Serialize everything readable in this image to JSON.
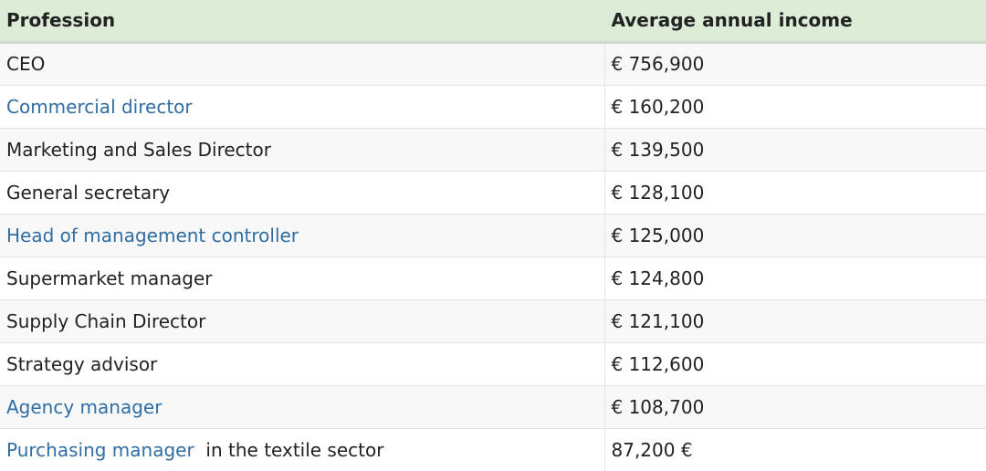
{
  "table": {
    "headers": {
      "profession": "Profession",
      "income": "Average annual income"
    },
    "colors": {
      "header_bg": "#dcecd6",
      "link": "#2f6da3",
      "text": "#222222"
    },
    "rows": [
      {
        "profession": "CEO",
        "suffix": "",
        "is_link": false,
        "income": "€ 756,900"
      },
      {
        "profession": "Commercial director",
        "suffix": "",
        "is_link": true,
        "income": "€ 160,200"
      },
      {
        "profession": "Marketing and Sales Director",
        "suffix": "",
        "is_link": false,
        "income": "€ 139,500"
      },
      {
        "profession": "General secretary",
        "suffix": "",
        "is_link": false,
        "income": "€ 128,100"
      },
      {
        "profession": "Head of management controller",
        "suffix": "",
        "is_link": true,
        "income": "€ 125,000"
      },
      {
        "profession": "Supermarket manager",
        "suffix": "",
        "is_link": false,
        "income": "€ 124,800"
      },
      {
        "profession": "Supply Chain Director",
        "suffix": "",
        "is_link": false,
        "income": "€ 121,100"
      },
      {
        "profession": "Strategy advisor",
        "suffix": "",
        "is_link": false,
        "income": "€ 112,600"
      },
      {
        "profession": "Agency manager",
        "suffix": "",
        "is_link": true,
        "income": "€ 108,700"
      },
      {
        "profession": "Purchasing manager",
        "suffix": "  in the textile sector",
        "is_link": true,
        "income": "87,200 €"
      }
    ]
  }
}
